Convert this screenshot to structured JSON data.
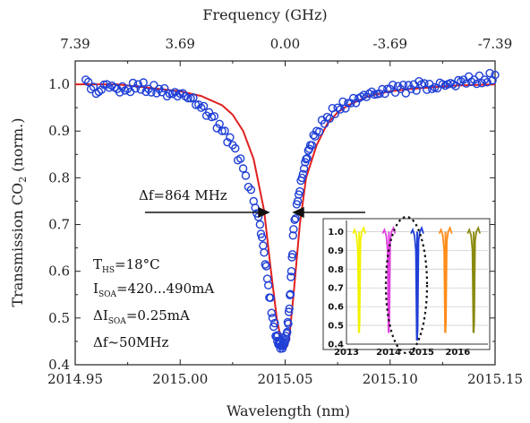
{
  "chart_data": [
    {
      "type": "scatter",
      "xlabel": "Wavelength (nm)",
      "ylabel": "Transmission CO2 (norm.)",
      "xlim": [
        2014.95,
        2015.15
      ],
      "ylim": [
        0.4,
        1.05
      ],
      "x_ticks": [
        "2014.95",
        "2015.00",
        "2015.05",
        "2015.10",
        "2015.15"
      ],
      "y_ticks": [
        "0.4",
        "0.5",
        "0.6",
        "0.7",
        "0.8",
        "0.9",
        "1.0"
      ],
      "top_axis": {
        "label": "Frequency (GHz)",
        "ticks": [
          "7.39",
          "3.69",
          "0.00",
          "-3.69",
          "-7.39"
        ]
      },
      "series": [
        {
          "kind": "markers",
          "color": "#1f3fd6",
          "x": [
            2014.955,
            2014.96,
            2014.965,
            2014.97,
            2014.975,
            2014.98,
            2014.985,
            2014.99,
            2014.995,
            2015.0,
            2015.005,
            2015.01,
            2015.015,
            2015.02,
            2015.025,
            2015.03,
            2015.035,
            2015.038,
            2015.04,
            2015.042,
            2015.044,
            2015.046,
            2015.047,
            2015.048,
            2015.049,
            2015.05,
            2015.051,
            2015.052,
            2015.053,
            2015.054,
            2015.056,
            2015.058,
            2015.06,
            2015.062,
            2015.065,
            2015.07,
            2015.075,
            2015.08,
            2015.085,
            2015.09,
            2015.095,
            2015.1,
            2015.105,
            2015.11,
            2015.115,
            2015.12,
            2015.125,
            2015.13,
            2015.135,
            2015.14,
            2015.145,
            2015.15
          ],
          "y": [
            1.01,
            0.98,
            1.0,
            0.99,
            0.99,
            1.0,
            0.99,
            0.99,
            0.98,
            0.98,
            0.97,
            0.95,
            0.93,
            0.9,
            0.87,
            0.82,
            0.75,
            0.7,
            0.64,
            0.57,
            0.5,
            0.46,
            0.45,
            0.44,
            0.44,
            0.45,
            0.47,
            0.52,
            0.6,
            0.69,
            0.75,
            0.8,
            0.84,
            0.87,
            0.9,
            0.93,
            0.95,
            0.96,
            0.97,
            0.98,
            0.98,
            0.99,
            0.99,
            0.99,
            1.0,
            0.99,
            1.0,
            1.0,
            1.01,
            1.01,
            1.01,
            1.02
          ]
        },
        {
          "kind": "fit",
          "color": "#e02020",
          "x": [
            2014.95,
            2014.97,
            2014.99,
            2015.0,
            2015.01,
            2015.02,
            2015.025,
            2015.03,
            2015.035,
            2015.04,
            2015.043,
            2015.046,
            2015.048,
            2015.049,
            2015.05,
            2015.051,
            2015.052,
            2015.054,
            2015.057,
            2015.06,
            2015.065,
            2015.07,
            2015.075,
            2015.08,
            2015.09,
            2015.1,
            2015.11,
            2015.13,
            2015.15
          ],
          "y": [
            1.0,
            1.0,
            0.99,
            0.985,
            0.975,
            0.955,
            0.935,
            0.9,
            0.84,
            0.73,
            0.61,
            0.5,
            0.455,
            0.44,
            0.435,
            0.44,
            0.46,
            0.55,
            0.7,
            0.8,
            0.87,
            0.915,
            0.94,
            0.955,
            0.975,
            0.985,
            0.99,
            0.997,
            1.0
          ]
        }
      ],
      "annotations": {
        "df": "Δf=864 MHz",
        "params": [
          {
            "main": "T",
            "sub": "HS",
            "rest": "=18°C"
          },
          {
            "main": "I",
            "sub": "SOA",
            "rest": "=420...490mA"
          },
          {
            "main": "ΔI",
            "sub": "SOA",
            "rest": "=0.25mA"
          },
          {
            "main": "Δf~50MHz",
            "sub": "",
            "rest": ""
          }
        ]
      }
    },
    {
      "type": "line",
      "role": "inset",
      "ylim": [
        0.4,
        1.05
      ],
      "y_ticks": [
        "1.0",
        "0.9",
        "0.8",
        "0.7",
        "0.6",
        "0.5",
        "0.4"
      ],
      "x_ticks": [
        "2013",
        "2014",
        "2015",
        "2016"
      ],
      "series": [
        {
          "color": "#f2f200",
          "x_center": 0.09,
          "min_y": 0.46
        },
        {
          "color": "#e040e0",
          "x_center": 0.3,
          "min_y": 0.46
        },
        {
          "color": "#1f3fd6",
          "x_center": 0.5,
          "min_y": 0.42
        },
        {
          "color": "#ff8c1a",
          "x_center": 0.7,
          "min_y": 0.46
        },
        {
          "color": "#8a8a10",
          "x_center": 0.9,
          "min_y": 0.46
        }
      ],
      "highlight": "2015"
    }
  ]
}
